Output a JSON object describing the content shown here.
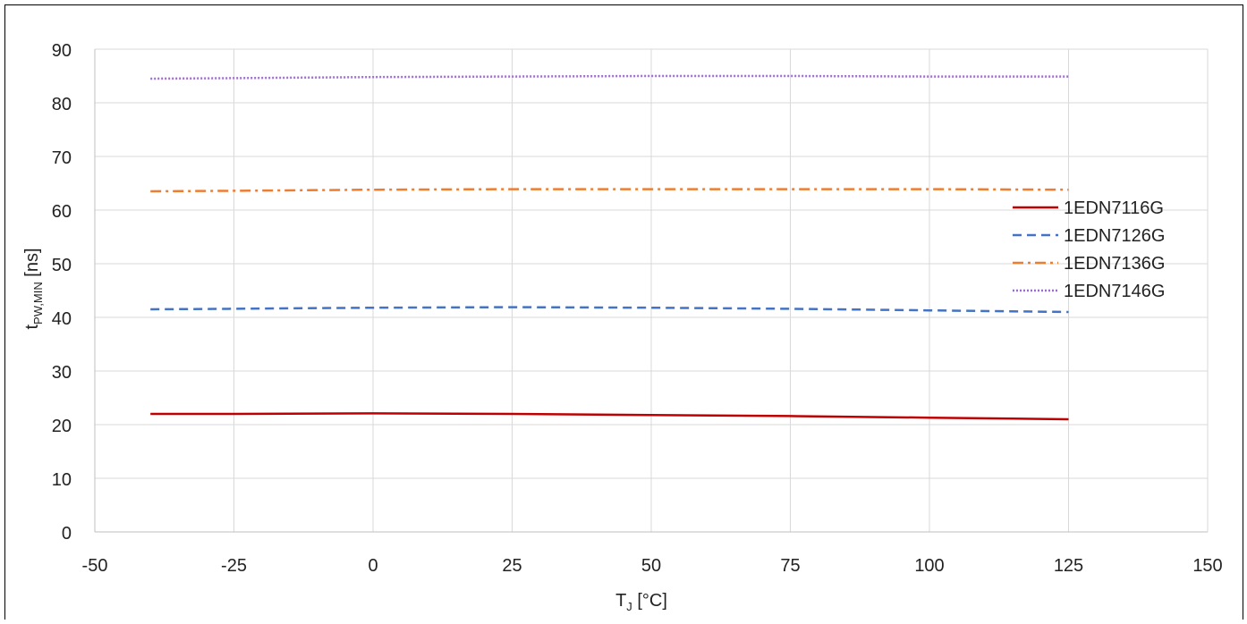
{
  "chart_data": {
    "type": "line",
    "title": "",
    "xlabel_main": "T",
    "xlabel_sub": "J",
    "xlabel_unit": " [°C]",
    "ylabel_main": "t",
    "ylabel_sub": "PW,MIN",
    "ylabel_unit": " [ns]",
    "xlim": [
      -50,
      150
    ],
    "ylim": [
      0,
      90
    ],
    "xticks": [
      -50,
      -25,
      0,
      25,
      50,
      75,
      100,
      125,
      150
    ],
    "yticks": [
      0,
      10,
      20,
      30,
      40,
      50,
      60,
      70,
      80,
      90
    ],
    "grid": true,
    "legend_position": "right",
    "x": [
      -40,
      -25,
      0,
      25,
      50,
      75,
      100,
      125
    ],
    "series": [
      {
        "name": "1EDN7116G",
        "color": "#c00000",
        "dash": "solid",
        "values": [
          22.0,
          22.0,
          22.1,
          22.0,
          21.8,
          21.6,
          21.3,
          21.0
        ]
      },
      {
        "name": "1EDN7126G",
        "color": "#4472c4",
        "dash": "dash",
        "values": [
          41.5,
          41.6,
          41.8,
          41.9,
          41.8,
          41.6,
          41.3,
          41.0
        ]
      },
      {
        "name": "1EDN7136G",
        "color": "#ed7d31",
        "dash": "dashdot",
        "values": [
          63.5,
          63.6,
          63.8,
          63.9,
          63.9,
          63.9,
          63.9,
          63.8
        ]
      },
      {
        "name": "1EDN7146G",
        "color": "#9e6ccf",
        "dash": "dot",
        "values": [
          84.5,
          84.6,
          84.8,
          84.9,
          85.0,
          85.0,
          84.9,
          84.9
        ]
      }
    ]
  }
}
